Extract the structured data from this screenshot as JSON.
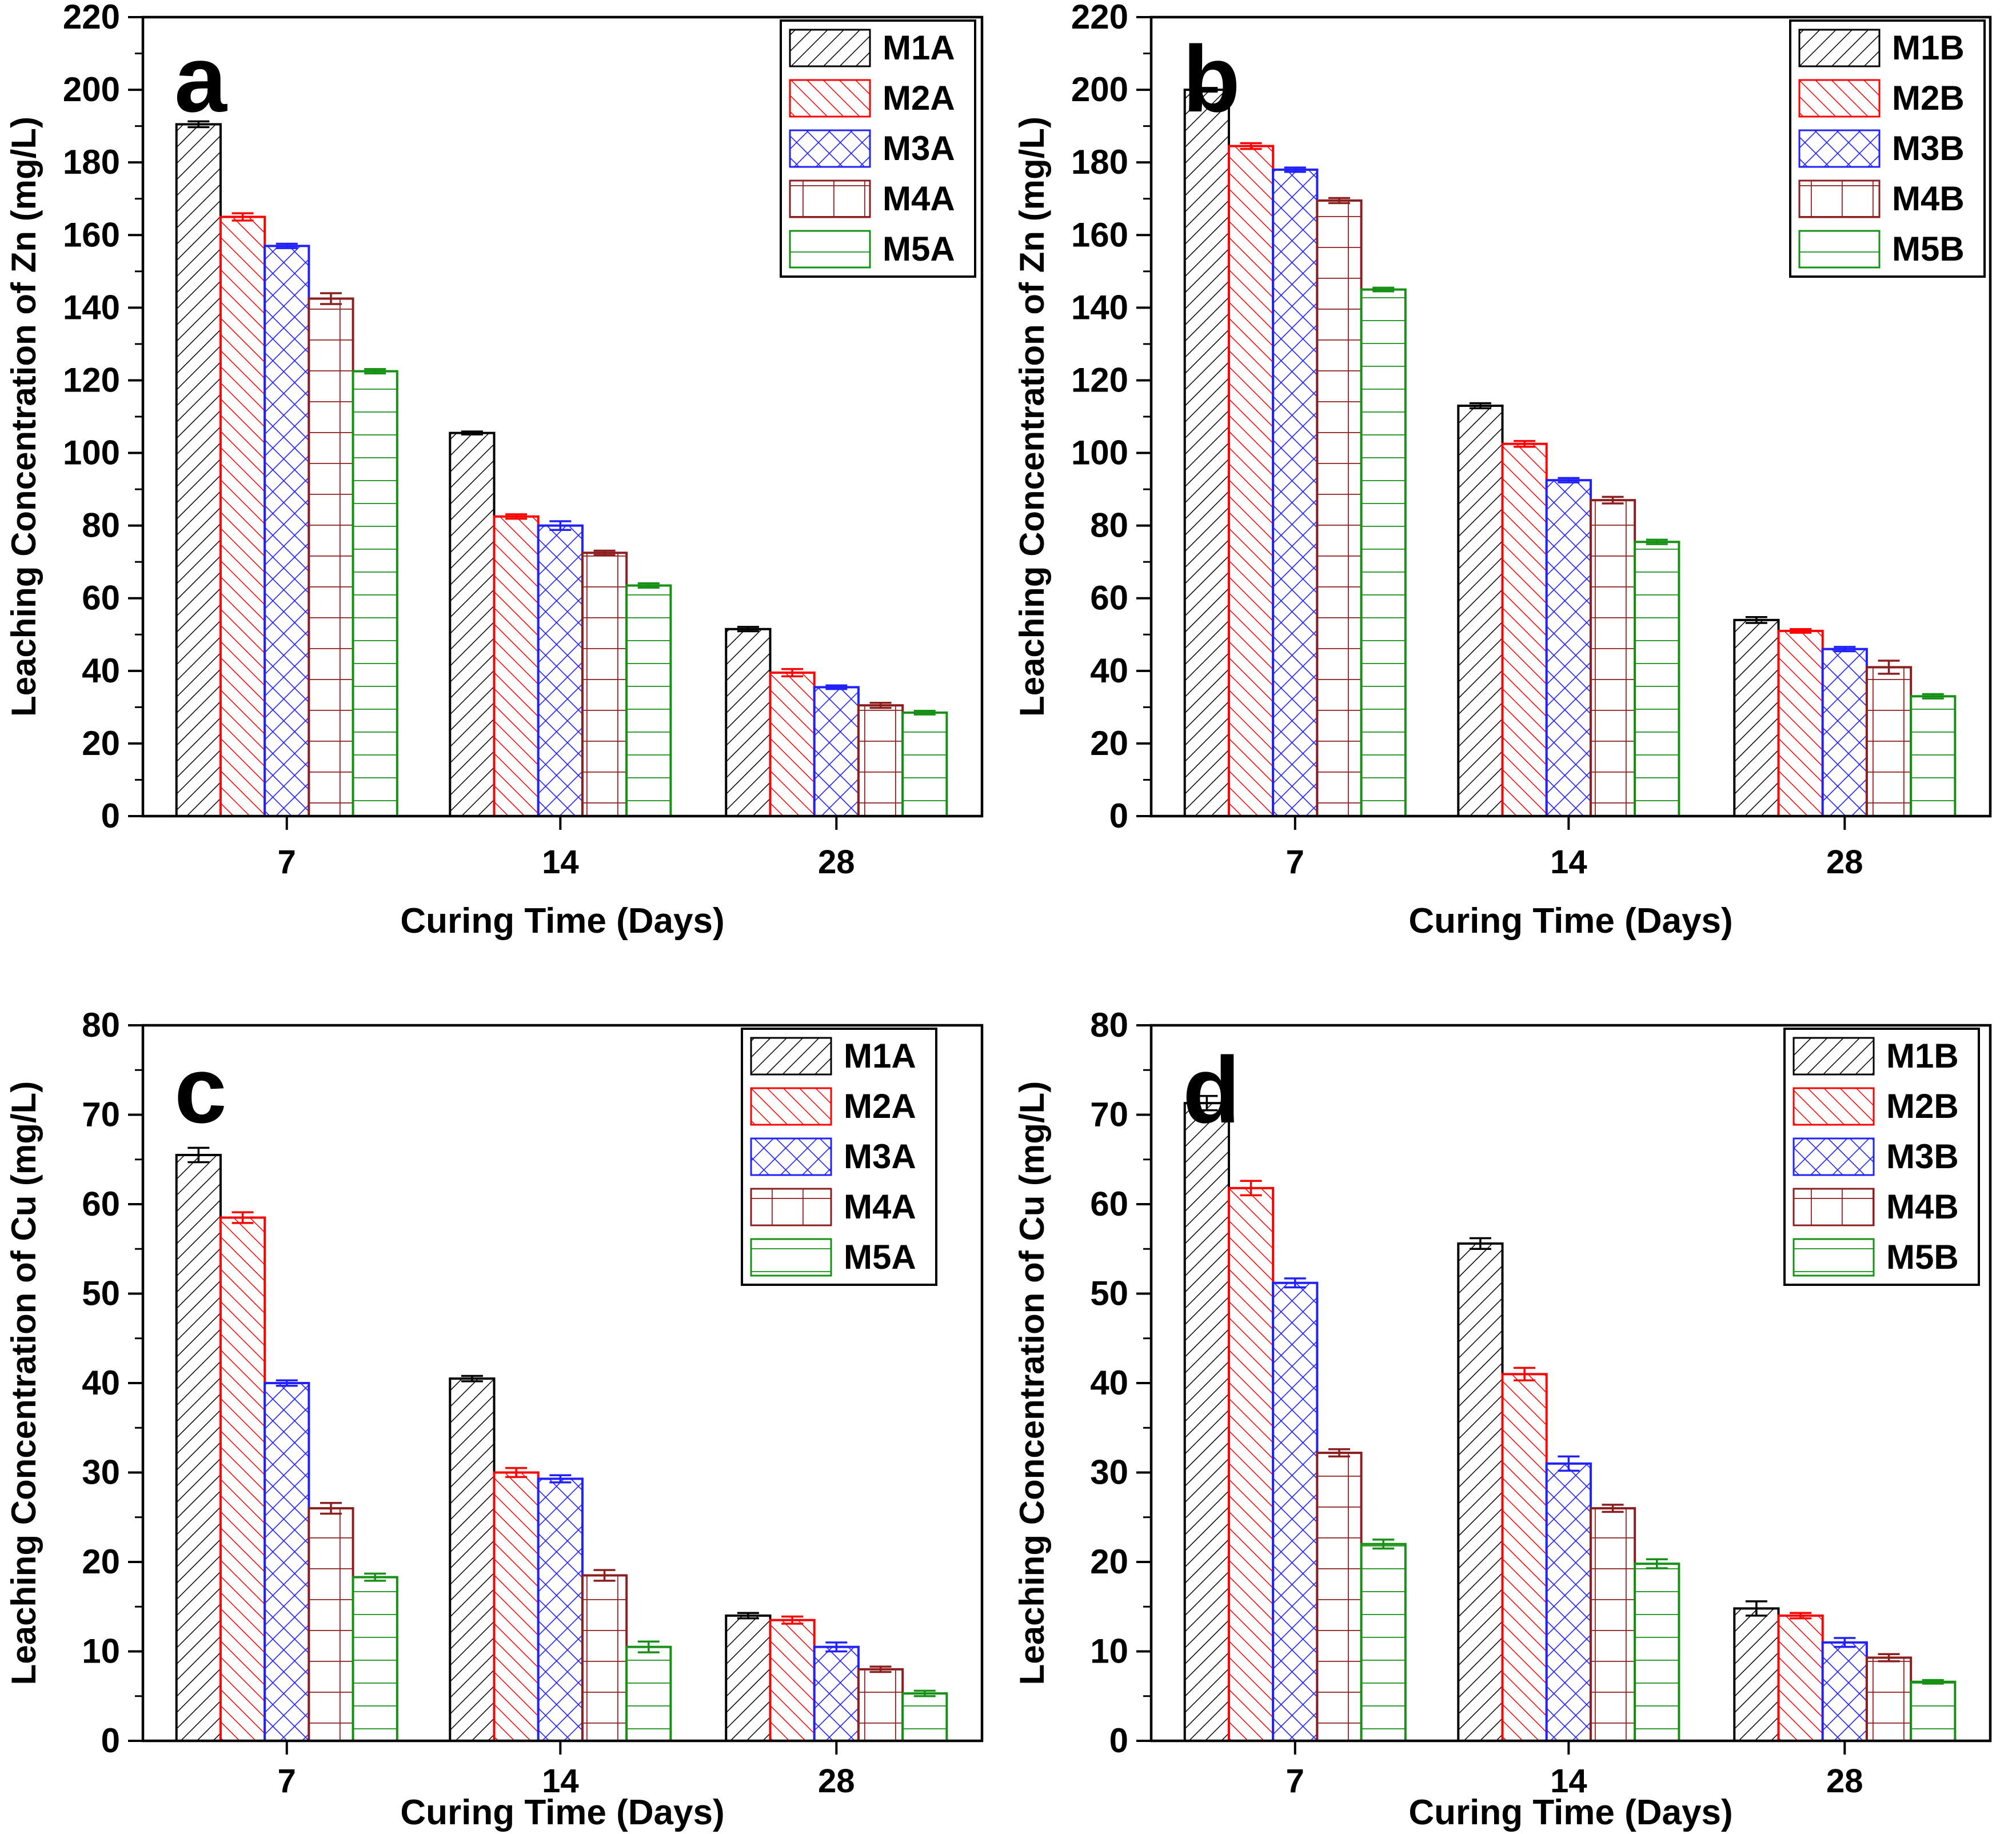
{
  "figure": {
    "background": "#ffffff",
    "frame_color": "#000000",
    "panel_letters": [
      "a",
      "b",
      "c",
      "d"
    ]
  },
  "chart_data": [
    {
      "panel_label": "a",
      "type": "bar",
      "xlabel": "Curing Time (Days)",
      "ylabel": "Leaching Concentration of Zn (mg/L)",
      "ylim": [
        0,
        220
      ],
      "ytick_step": 20,
      "y_minor_step": 10,
      "categories": [
        "7",
        "14",
        "28"
      ],
      "grid": false,
      "legend_position": "top-right",
      "series": [
        {
          "name": "M1A",
          "color": "#000000",
          "pattern": "diagonal-up-hatch",
          "values": [
            190.5,
            105.5,
            51.5
          ],
          "errors": [
            0.8,
            0.4,
            0.6
          ]
        },
        {
          "name": "M2A",
          "color": "#ff0000",
          "pattern": "diagonal-down-hatch",
          "values": [
            165.0,
            82.5,
            39.5
          ],
          "errors": [
            1.0,
            0.6,
            1.0
          ]
        },
        {
          "name": "M3A",
          "color": "#2121ff",
          "pattern": "crosshatch",
          "values": [
            157.0,
            80.0,
            35.5
          ],
          "errors": [
            0.6,
            1.2,
            0.5
          ]
        },
        {
          "name": "M4A",
          "color": "#8b1f1f",
          "pattern": "grid-hatch",
          "values": [
            142.5,
            72.5,
            30.5
          ],
          "errors": [
            1.5,
            0.6,
            0.7
          ]
        },
        {
          "name": "M5A",
          "color": "#169116",
          "pattern": "horizontal-lines",
          "values": [
            122.5,
            63.5,
            28.5
          ],
          "errors": [
            0.6,
            0.6,
            0.5
          ]
        }
      ]
    },
    {
      "panel_label": "b",
      "type": "bar",
      "xlabel": "Curing Time (Days)",
      "ylabel": "Leaching Concentration of Zn (mg/L)",
      "ylim": [
        0,
        220
      ],
      "ytick_step": 20,
      "y_minor_step": 10,
      "categories": [
        "7",
        "14",
        "28"
      ],
      "grid": false,
      "legend_position": "top-right",
      "series": [
        {
          "name": "M1B",
          "color": "#000000",
          "pattern": "diagonal-up-hatch",
          "values": [
            200.0,
            113.0,
            54.0
          ],
          "errors": [
            0.5,
            0.7,
            0.8
          ]
        },
        {
          "name": "M2B",
          "color": "#ff0000",
          "pattern": "diagonal-down-hatch",
          "values": [
            184.5,
            102.5,
            51.0
          ],
          "errors": [
            0.8,
            0.8,
            0.5
          ]
        },
        {
          "name": "M3B",
          "color": "#2121ff",
          "pattern": "crosshatch",
          "values": [
            178.0,
            92.5,
            46.0
          ],
          "errors": [
            0.6,
            0.6,
            0.6
          ]
        },
        {
          "name": "M4B",
          "color": "#8b1f1f",
          "pattern": "grid-hatch",
          "values": [
            169.5,
            87.0,
            41.0
          ],
          "errors": [
            0.7,
            0.9,
            1.8
          ]
        },
        {
          "name": "M5B",
          "color": "#169116",
          "pattern": "horizontal-lines",
          "values": [
            145.0,
            75.5,
            33.0
          ],
          "errors": [
            0.5,
            0.6,
            0.6
          ]
        }
      ]
    },
    {
      "panel_label": "c",
      "type": "bar",
      "xlabel": "Curing Time (Days)",
      "ylabel": "Leaching Concentration of Cu (mg/L)",
      "ylim": [
        0,
        80
      ],
      "ytick_step": 10,
      "y_minor_step": 5,
      "categories": [
        "7",
        "14",
        "28"
      ],
      "grid": false,
      "legend_position": "top-right",
      "series": [
        {
          "name": "M1A",
          "color": "#000000",
          "pattern": "diagonal-up-hatch",
          "values": [
            65.5,
            40.5,
            14.0
          ],
          "errors": [
            0.8,
            0.3,
            0.3
          ]
        },
        {
          "name": "M2A",
          "color": "#ff0000",
          "pattern": "diagonal-down-hatch",
          "values": [
            58.5,
            30.0,
            13.5
          ],
          "errors": [
            0.6,
            0.5,
            0.4
          ]
        },
        {
          "name": "M3A",
          "color": "#2121ff",
          "pattern": "crosshatch",
          "values": [
            40.0,
            29.3,
            10.5
          ],
          "errors": [
            0.3,
            0.4,
            0.5
          ]
        },
        {
          "name": "M4A",
          "color": "#8b1f1f",
          "pattern": "grid-hatch",
          "values": [
            26.0,
            18.5,
            8.0
          ],
          "errors": [
            0.6,
            0.6,
            0.3
          ]
        },
        {
          "name": "M5A",
          "color": "#169116",
          "pattern": "horizontal-lines",
          "values": [
            18.3,
            10.5,
            5.3
          ],
          "errors": [
            0.4,
            0.6,
            0.3
          ]
        }
      ]
    },
    {
      "panel_label": "d",
      "type": "bar",
      "xlabel": "Curing Time (Days)",
      "ylabel": "Leaching Concentration of Cu (mg/L)",
      "ylim": [
        0,
        80
      ],
      "ytick_step": 10,
      "y_minor_step": 5,
      "categories": [
        "7",
        "14",
        "28"
      ],
      "grid": false,
      "legend_position": "top-right",
      "series": [
        {
          "name": "M1B",
          "color": "#000000",
          "pattern": "diagonal-up-hatch",
          "values": [
            71.3,
            55.6,
            14.8
          ],
          "errors": [
            0.8,
            0.6,
            0.8
          ]
        },
        {
          "name": "M2B",
          "color": "#ff0000",
          "pattern": "diagonal-down-hatch",
          "values": [
            61.8,
            41.0,
            14.0
          ],
          "errors": [
            0.8,
            0.7,
            0.3
          ]
        },
        {
          "name": "M3B",
          "color": "#2121ff",
          "pattern": "crosshatch",
          "values": [
            51.2,
            31.0,
            11.0
          ],
          "errors": [
            0.5,
            0.8,
            0.5
          ]
        },
        {
          "name": "M4B",
          "color": "#8b1f1f",
          "pattern": "grid-hatch",
          "values": [
            32.2,
            26.0,
            9.3
          ],
          "errors": [
            0.4,
            0.4,
            0.4
          ]
        },
        {
          "name": "M5B",
          "color": "#169116",
          "pattern": "horizontal-lines",
          "values": [
            22.0,
            19.8,
            6.6
          ],
          "errors": [
            0.5,
            0.5,
            0.2
          ]
        }
      ]
    }
  ]
}
